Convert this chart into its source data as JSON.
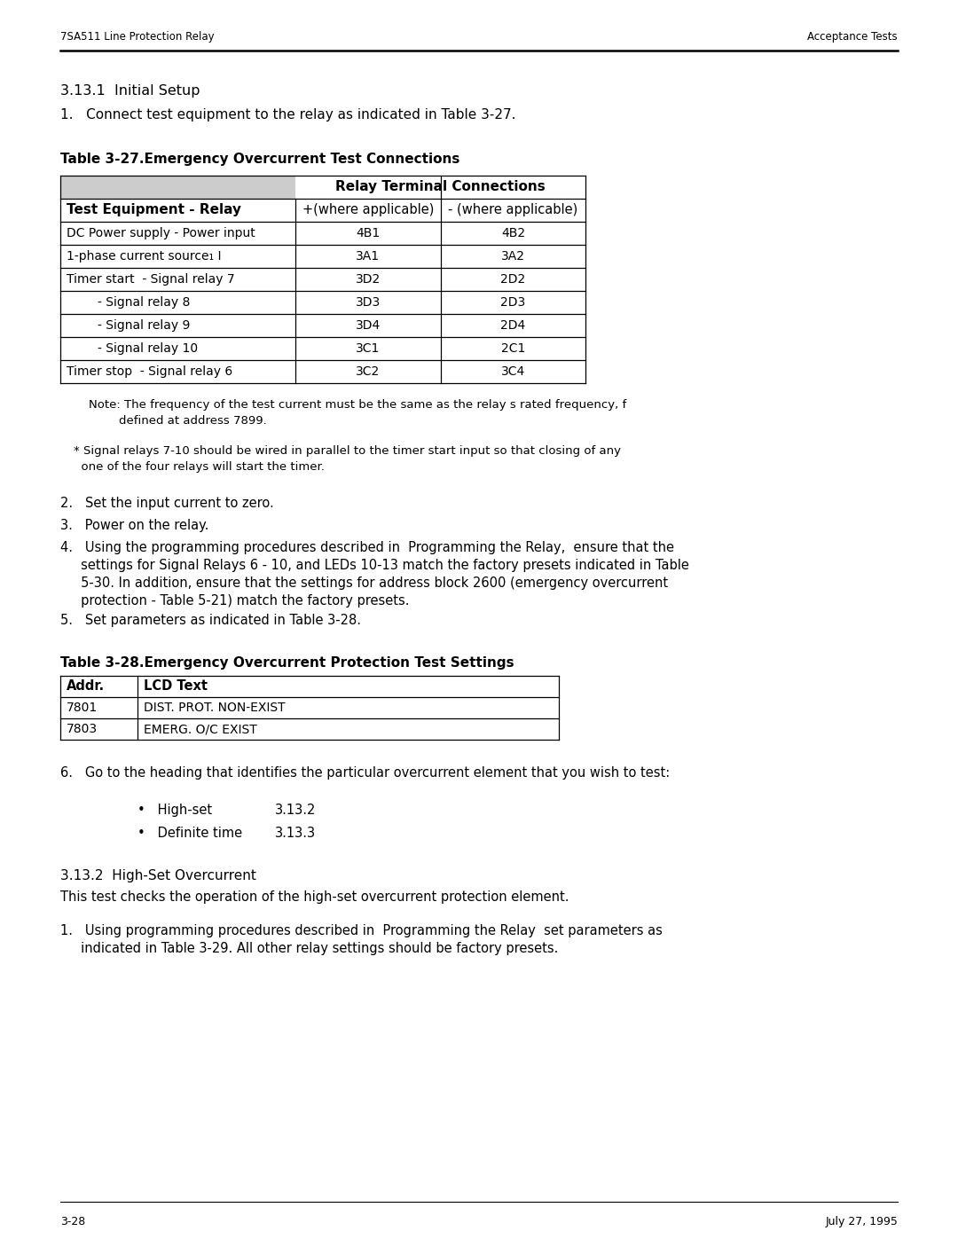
{
  "header_left": "7SA511 Line Protection Relay",
  "header_right": "Acceptance Tests",
  "page_number": "3-28",
  "page_date": "July 27, 1995",
  "section_title": "3.13.1  Initial Setup",
  "intro_line": "1.   Connect test equipment to the relay as indicated in Table 3-27.",
  "table1_title": "Table 3-27.Emergency Overcurrent Test Connections",
  "table1_header_span": "Relay Terminal Connections",
  "table1_col1_header": "Test Equipment - Relay",
  "table1_col2_header": "+(where applicable)",
  "table1_col3_header": "- (where applicable)",
  "table1_rows": [
    [
      "DC Power supply - Power input",
      "4B1",
      "4B2"
    ],
    [
      "1-phase current source₁ I",
      "3A1",
      "3A2"
    ],
    [
      "Timer start  - Signal relay 7",
      "3D2",
      "2D2"
    ],
    [
      "        - Signal relay 8",
      "3D3",
      "2D3"
    ],
    [
      "        - Signal relay 9",
      "3D4",
      "2D4"
    ],
    [
      "        - Signal relay 10",
      "3C1",
      "2C1"
    ],
    [
      "Timer stop  - Signal relay 6",
      "3C2",
      "3C4"
    ]
  ],
  "note1_line1": "Note: The frequency of the test current must be the same as the relay s rated frequency, f",
  "note1_line2": "        defined at address 7899.",
  "note2_line1": "* Signal relays 7-10 should be wired in parallel to the timer start input so that closing of any",
  "note2_line2": "  one of the four relays will start the timer.",
  "step2": "2.   Set the input current to zero.",
  "step3": "3.   Power on the relay.",
  "step4_line1": "4.   Using the programming procedures described in  Programming the Relay,  ensure that the",
  "step4_line2": "     settings for Signal Relays 6 - 10, and LEDs 10-13 match the factory presets indicated in Table",
  "step4_line3": "     5-30. In addition, ensure that the settings for address block 2600 (emergency overcurrent",
  "step4_line4": "     protection - Table 5-21) match the factory presets.",
  "step5": "5.   Set parameters as indicated in Table 3-28.",
  "table2_title": "Table 3-28.Emergency Overcurrent Protection Test Settings",
  "table2_col1_header": "Addr.",
  "table2_col2_header": "LCD Text",
  "table2_rows": [
    [
      "7801",
      "DIST. PROT. NON-EXIST"
    ],
    [
      "7803",
      "EMERG. O/C EXIST"
    ]
  ],
  "step6": "6.   Go to the heading that identifies the particular overcurrent element that you wish to test:",
  "bullet1_text": "•   High-set",
  "bullet1_ref": "3.13.2",
  "bullet2_text": "•   Definite time",
  "bullet2_ref": "3.13.3",
  "section2_title": "3.13.2  High-Set Overcurrent",
  "section2_body": "This test checks the operation of the high-set overcurrent protection element.",
  "step_final_line1": "1.   Using programming procedures described in  Programming the Relay  set parameters as",
  "step_final_line2": "     indicated in Table 3-29. All other relay settings should be factory presets.",
  "bg_color": "#ffffff",
  "text_color": "#000000"
}
